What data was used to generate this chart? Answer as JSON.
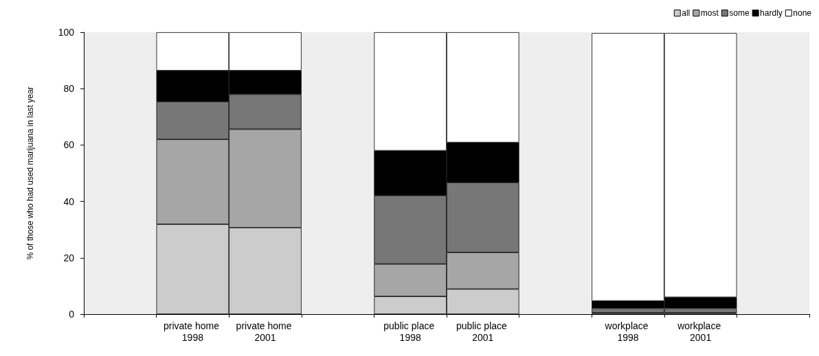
{
  "chart_data": {
    "type": "bar",
    "stacked": true,
    "ylabel": "% of those who had used marijuana in last year",
    "categories": [
      null,
      "private home 1998",
      "private home 2001",
      null,
      "public place 1998",
      "public place 2001",
      null,
      "workplace 1998",
      "workplace 2001",
      null
    ],
    "series": [
      {
        "name": "all",
        "color": "#cccccc",
        "values": [
          null,
          31.9,
          30.7,
          null,
          6.3,
          8.9,
          null,
          0.5,
          0.5,
          null
        ]
      },
      {
        "name": "most",
        "color": "#a6a6a6",
        "values": [
          null,
          30.1,
          34.9,
          null,
          11.5,
          13.0,
          null,
          null,
          null,
          null
        ]
      },
      {
        "name": "some",
        "color": "#777777",
        "values": [
          null,
          13.4,
          12.4,
          null,
          24.3,
          24.8,
          null,
          1.6,
          1.6,
          null
        ]
      },
      {
        "name": "hardly",
        "color": "#000000",
        "values": [
          null,
          11.0,
          8.4,
          null,
          15.9,
          14.2,
          null,
          2.6,
          3.9,
          null
        ]
      },
      {
        "name": "none",
        "color": "#ffffff",
        "values": [
          null,
          13.6,
          13.6,
          null,
          42.0,
          39.1,
          null,
          95.0,
          93.7,
          null
        ]
      }
    ],
    "ylim": [
      0,
      100
    ],
    "yticks": [
      0,
      20,
      40,
      60,
      80,
      100
    ],
    "grid": false,
    "legend": "top right"
  }
}
